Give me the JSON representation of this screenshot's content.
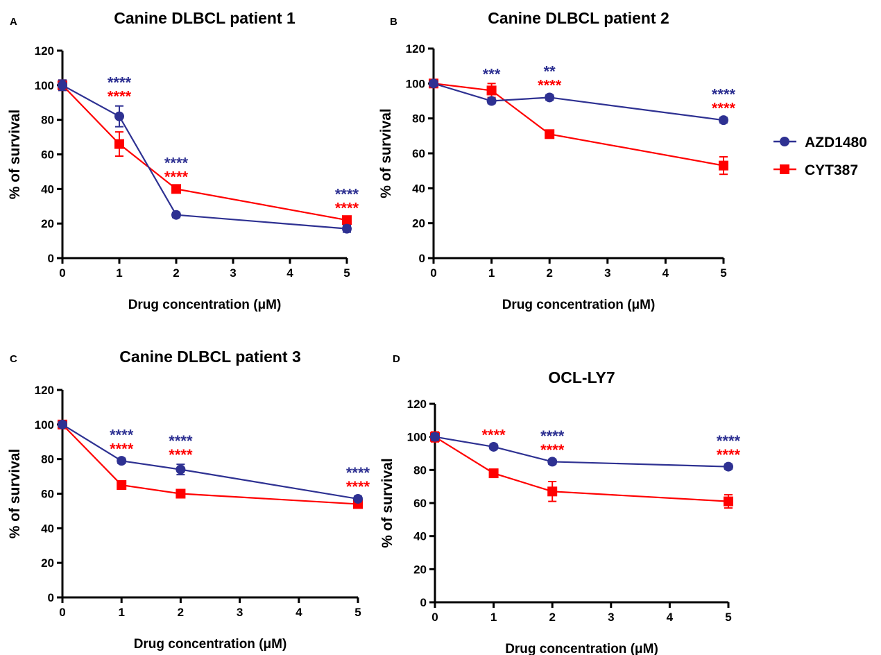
{
  "legend": {
    "placement": "right",
    "items": [
      {
        "name": "AZD1480",
        "color": "#2e3192",
        "marker": "circle"
      },
      {
        "name": "CYT387",
        "color": "#ff0000",
        "marker": "square"
      }
    ]
  },
  "chart_data": [
    {
      "type": "line",
      "panel_letter": "A",
      "title": "Canine DLBCL patient 1",
      "xlabel": "Drug concentration (μM)",
      "ylabel": "% of survival",
      "x_ticks": [
        0,
        1,
        2,
        3,
        4,
        5
      ],
      "y_ticks": [
        0,
        20,
        40,
        60,
        80,
        100,
        120
      ],
      "xlim": [
        0,
        5
      ],
      "ylim": [
        0,
        120
      ],
      "grid": false,
      "series": [
        {
          "name": "AZD1480",
          "color": "#2e3192",
          "marker": "circle",
          "x": [
            0,
            1,
            2,
            5
          ],
          "y": [
            100,
            82,
            25,
            17
          ],
          "err": [
            3,
            6,
            1.5,
            2
          ]
        },
        {
          "name": "CYT387",
          "color": "#ff0000",
          "marker": "square",
          "x": [
            0,
            1,
            2,
            5
          ],
          "y": [
            100,
            66,
            40,
            22
          ],
          "err": [
            3,
            7,
            1.5,
            1.5
          ]
        }
      ],
      "significance": [
        {
          "x": 1,
          "labels": [
            {
              "text": "****",
              "color": "#2e3192"
            },
            {
              "text": "****",
              "color": "#ff0000"
            }
          ]
        },
        {
          "x": 2,
          "labels": [
            {
              "text": "****",
              "color": "#2e3192"
            },
            {
              "text": "****",
              "color": "#ff0000"
            }
          ]
        },
        {
          "x": 5,
          "labels": [
            {
              "text": "****",
              "color": "#2e3192"
            },
            {
              "text": "****",
              "color": "#ff0000"
            }
          ]
        }
      ]
    },
    {
      "type": "line",
      "panel_letter": "B",
      "title": "Canine DLBCL patient 2",
      "xlabel": "Drug concentration (μM)",
      "ylabel": "% of survival",
      "x_ticks": [
        0,
        1,
        2,
        3,
        4,
        5
      ],
      "y_ticks": [
        0,
        20,
        40,
        60,
        80,
        100,
        120
      ],
      "xlim": [
        0,
        5
      ],
      "ylim": [
        0,
        120
      ],
      "grid": false,
      "series": [
        {
          "name": "AZD1480",
          "color": "#2e3192",
          "marker": "circle",
          "x": [
            0,
            1,
            2,
            5
          ],
          "y": [
            100,
            90,
            92,
            79
          ],
          "err": [
            1.5,
            1.5,
            1.5,
            1.5
          ]
        },
        {
          "name": "CYT387",
          "color": "#ff0000",
          "marker": "square",
          "x": [
            0,
            1,
            2,
            5
          ],
          "y": [
            100,
            96,
            71,
            53
          ],
          "err": [
            1.5,
            4,
            2,
            5
          ]
        }
      ],
      "significance": [
        {
          "x": 1,
          "labels": [
            {
              "text": "***",
              "color": "#2e3192"
            }
          ]
        },
        {
          "x": 2,
          "labels": [
            {
              "text": "**",
              "color": "#2e3192"
            },
            {
              "text": "****",
              "color": "#ff0000"
            }
          ]
        },
        {
          "x": 5,
          "labels": [
            {
              "text": "****",
              "color": "#2e3192"
            },
            {
              "text": "****",
              "color": "#ff0000"
            }
          ]
        }
      ]
    },
    {
      "type": "line",
      "panel_letter": "C",
      "title": "Canine DLBCL patient 3",
      "xlabel": "Drug concentration (μM)",
      "ylabel": "% of survival",
      "x_ticks": [
        0,
        1,
        2,
        3,
        4,
        5
      ],
      "y_ticks": [
        0,
        20,
        40,
        60,
        80,
        100,
        120
      ],
      "xlim": [
        0,
        5
      ],
      "ylim": [
        0,
        120
      ],
      "grid": false,
      "series": [
        {
          "name": "AZD1480",
          "color": "#2e3192",
          "marker": "circle",
          "x": [
            0,
            1,
            2,
            5
          ],
          "y": [
            100,
            79,
            74,
            57
          ],
          "err": [
            1.5,
            1.5,
            3,
            1.5
          ]
        },
        {
          "name": "CYT387",
          "color": "#ff0000",
          "marker": "square",
          "x": [
            0,
            1,
            2,
            5
          ],
          "y": [
            100,
            65,
            60,
            54
          ],
          "err": [
            1.5,
            1.5,
            1.5,
            1.5
          ]
        }
      ],
      "significance": [
        {
          "x": 1,
          "labels": [
            {
              "text": "****",
              "color": "#2e3192"
            },
            {
              "text": "****",
              "color": "#ff0000"
            }
          ]
        },
        {
          "x": 2,
          "labels": [
            {
              "text": "****",
              "color": "#2e3192"
            },
            {
              "text": "****",
              "color": "#ff0000"
            }
          ]
        },
        {
          "x": 5,
          "labels": [
            {
              "text": "****",
              "color": "#2e3192"
            },
            {
              "text": "****",
              "color": "#ff0000"
            }
          ]
        }
      ]
    },
    {
      "type": "line",
      "panel_letter": "D",
      "title": "OCL-LY7",
      "xlabel": "Drug concentration (μM)",
      "ylabel": "% of survival",
      "x_ticks": [
        0,
        1,
        2,
        3,
        4,
        5
      ],
      "y_ticks": [
        0,
        20,
        40,
        60,
        80,
        100,
        120
      ],
      "xlim": [
        0,
        5
      ],
      "ylim": [
        0,
        120
      ],
      "grid": false,
      "series": [
        {
          "name": "AZD1480",
          "color": "#2e3192",
          "marker": "circle",
          "x": [
            0,
            1,
            2,
            5
          ],
          "y": [
            100,
            94,
            85,
            82
          ],
          "err": [
            2,
            1.5,
            1.5,
            1.5
          ]
        },
        {
          "name": "CYT387",
          "color": "#ff0000",
          "marker": "square",
          "x": [
            0,
            1,
            2,
            5
          ],
          "y": [
            100,
            78,
            67,
            61
          ],
          "err": [
            3,
            1.5,
            6,
            4
          ]
        }
      ],
      "significance": [
        {
          "x": 1,
          "labels": [
            {
              "text": "****",
              "color": "#ff0000"
            }
          ]
        },
        {
          "x": 2,
          "labels": [
            {
              "text": "****",
              "color": "#2e3192"
            },
            {
              "text": "****",
              "color": "#ff0000"
            }
          ]
        },
        {
          "x": 5,
          "labels": [
            {
              "text": "****",
              "color": "#2e3192"
            },
            {
              "text": "****",
              "color": "#ff0000"
            }
          ]
        }
      ]
    }
  ]
}
